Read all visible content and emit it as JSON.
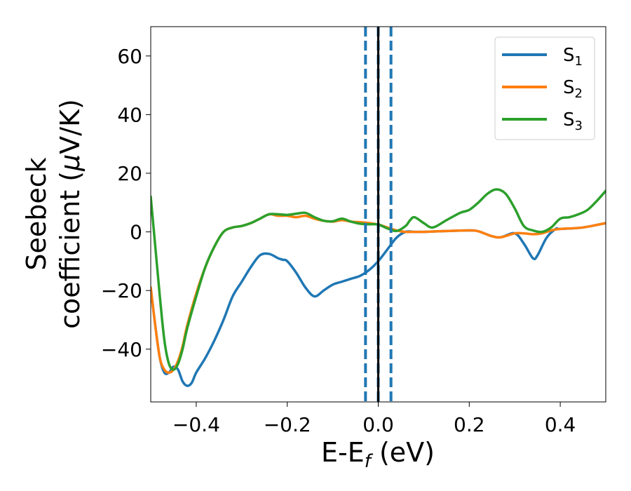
{
  "chart_data": {
    "type": "line",
    "title": "",
    "xlabel": "E-E",
    "xlabel_sub": "f",
    "xlabel_unit": " (eV)",
    "ylabel_line1": "Seebeck",
    "ylabel_line2": "coefficient  (",
    "ylabel_mu": "μ",
    "ylabel_unit_end": "V/K)",
    "xlim": [
      -0.5,
      0.5
    ],
    "ylim": [
      -58,
      70
    ],
    "xticks": [
      -0.4,
      -0.2,
      0.0,
      0.2,
      0.4
    ],
    "xtick_labels": [
      "−0.4",
      "−0.2",
      "0.0",
      "0.2",
      "0.4"
    ],
    "yticks": [
      -40,
      -20,
      0,
      20,
      40,
      60
    ],
    "ytick_labels": [
      "−40",
      "−20",
      "0",
      "20",
      "40",
      "60"
    ],
    "grid": false,
    "legend_position": "top-right",
    "vlines": [
      {
        "x": -0.028,
        "style": "dashed",
        "color": "#1f77b4"
      },
      {
        "x": 0.0,
        "style": "dashed",
        "color": "#1f77b4"
      },
      {
        "x": 0.0,
        "style": "solid",
        "color": "#000000"
      },
      {
        "x": 0.028,
        "style": "dashed",
        "color": "#1f77b4"
      }
    ],
    "series": [
      {
        "name": "S",
        "subscript": "1",
        "color": "#1f77b4",
        "x": [
          -0.5,
          -0.49,
          -0.48,
          -0.47,
          -0.46,
          -0.45,
          -0.44,
          -0.43,
          -0.42,
          -0.41,
          -0.4,
          -0.38,
          -0.36,
          -0.34,
          -0.32,
          -0.3,
          -0.28,
          -0.26,
          -0.24,
          -0.22,
          -0.21,
          -0.2,
          -0.18,
          -0.16,
          -0.14,
          -0.12,
          -0.1,
          -0.08,
          -0.06,
          -0.04,
          -0.02,
          0.0,
          0.02,
          0.04,
          0.06,
          0.08,
          0.1,
          0.15,
          0.2,
          0.22,
          0.25,
          0.27,
          0.3,
          0.32,
          0.34,
          0.35,
          0.37,
          0.39,
          0.4,
          0.45,
          0.5
        ],
        "y": [
          -19,
          -32,
          -43,
          -48,
          -48,
          -46,
          -47,
          -51,
          -52.5,
          -51.5,
          -48,
          -43,
          -37,
          -30,
          -22,
          -17,
          -12,
          -8,
          -7.5,
          -9,
          -9.5,
          -10,
          -14,
          -19,
          -22,
          -20,
          -18,
          -17,
          -16,
          -15,
          -13,
          -10,
          -6,
          -2,
          0,
          0,
          0,
          0.3,
          0.5,
          0.2,
          -1.5,
          -1.8,
          -0.5,
          -4,
          -9,
          -8,
          -2,
          1,
          1,
          1.5,
          3
        ]
      },
      {
        "name": "S",
        "subscript": "2",
        "color": "#ff7f0e",
        "x": [
          -0.5,
          -0.49,
          -0.48,
          -0.47,
          -0.46,
          -0.45,
          -0.44,
          -0.43,
          -0.42,
          -0.4,
          -0.38,
          -0.36,
          -0.34,
          -0.32,
          -0.3,
          -0.28,
          -0.26,
          -0.24,
          -0.22,
          -0.2,
          -0.18,
          -0.16,
          -0.14,
          -0.12,
          -0.1,
          -0.08,
          -0.06,
          -0.04,
          -0.02,
          0.0,
          0.02,
          0.04,
          0.06,
          0.08,
          0.1,
          0.15,
          0.2,
          0.22,
          0.25,
          0.27,
          0.3,
          0.32,
          0.34,
          0.36,
          0.38,
          0.4,
          0.45,
          0.5
        ],
        "y": [
          -19,
          -32,
          -43,
          -47,
          -48,
          -47,
          -44,
          -39,
          -32,
          -21,
          -12,
          -5,
          0,
          1.5,
          2,
          3,
          4.5,
          6,
          5.5,
          5.5,
          5,
          5.5,
          4.5,
          3.8,
          3.5,
          4.0,
          3.5,
          3.3,
          3.0,
          2.5,
          1.5,
          0.5,
          0,
          0,
          0,
          0.3,
          0.5,
          0.2,
          -1.5,
          -1.8,
          -0.5,
          -0.5,
          -0.8,
          -0.5,
          0.5,
          1,
          1.5,
          3
        ]
      },
      {
        "name": "S",
        "subscript": "3",
        "color": "#2ca02c",
        "x": [
          -0.5,
          -0.49,
          -0.48,
          -0.47,
          -0.46,
          -0.45,
          -0.44,
          -0.43,
          -0.42,
          -0.4,
          -0.38,
          -0.36,
          -0.34,
          -0.32,
          -0.3,
          -0.28,
          -0.26,
          -0.24,
          -0.22,
          -0.2,
          -0.18,
          -0.16,
          -0.14,
          -0.12,
          -0.1,
          -0.08,
          -0.06,
          -0.04,
          -0.02,
          0.0,
          0.02,
          0.04,
          0.06,
          0.07,
          0.08,
          0.1,
          0.12,
          0.15,
          0.18,
          0.2,
          0.22,
          0.24,
          0.26,
          0.28,
          0.3,
          0.32,
          0.34,
          0.36,
          0.38,
          0.4,
          0.42,
          0.44,
          0.46,
          0.48,
          0.5
        ],
        "y": [
          12,
          -5,
          -22,
          -37,
          -45,
          -47,
          -45,
          -40,
          -33,
          -22,
          -12,
          -5,
          0,
          1.5,
          2,
          3,
          4.5,
          6,
          6,
          5.8,
          6.2,
          6.5,
          5,
          3.8,
          3.6,
          4.5,
          3.5,
          2.8,
          2.6,
          2.5,
          1.2,
          0.3,
          2,
          4,
          5,
          3,
          1.5,
          4,
          6.5,
          7.5,
          10,
          13,
          14.5,
          13,
          8,
          2,
          0.5,
          0,
          1.5,
          4.5,
          5,
          6,
          7.5,
          10.5,
          14
        ]
      }
    ]
  }
}
